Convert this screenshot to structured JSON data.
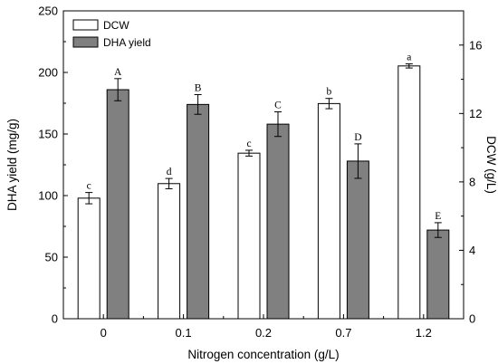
{
  "chart_data": {
    "type": "bar",
    "xlabel": "Nitrogen concentration (g/L)",
    "ylabel_left": "DHA yield (mg/g)",
    "ylabel_right": "DCW (g/L)",
    "categories": [
      "0",
      "0.1",
      "0.2",
      "0.7",
      "1.2"
    ],
    "ylim_left": [
      0,
      250
    ],
    "yticks_left": [
      0,
      50,
      100,
      150,
      200,
      250
    ],
    "ylim_right": [
      0,
      18
    ],
    "yticks_right": [
      0,
      4,
      8,
      12,
      16
    ],
    "legend_position": "top-left",
    "grid": false,
    "series": [
      {
        "name": "DCW",
        "axis": "right",
        "fill": "#ffffff",
        "values": [
          7.05,
          7.9,
          9.68,
          12.58,
          14.78
        ],
        "errors": [
          0.33,
          0.3,
          0.17,
          0.3,
          0.12
        ],
        "labels": [
          "c",
          "d",
          "c",
          "b",
          "a"
        ]
      },
      {
        "name": "DHA yield",
        "axis": "left",
        "fill": "#808080",
        "values": [
          186,
          174,
          158,
          128,
          72
        ],
        "errors": [
          9,
          8,
          10,
          14,
          6
        ],
        "labels": [
          "A",
          "B",
          "C",
          "D",
          "E"
        ]
      }
    ]
  }
}
